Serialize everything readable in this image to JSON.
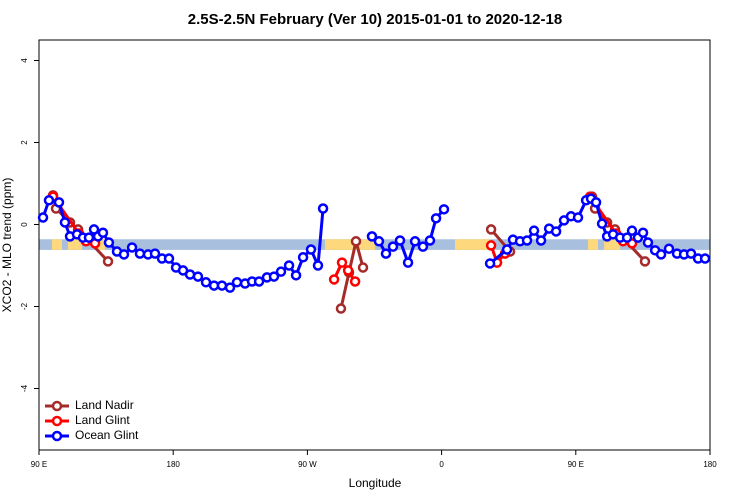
{
  "chart_data": {
    "type": "line",
    "title": "2.5S-2.5N February (Ver 10)   2015-01-01 to 2020-12-18",
    "x_label": "Longitude",
    "y_label": "XCO2 - MLO trend (ppm)",
    "xlim": [
      90,
      540
    ],
    "ylim": [
      -5.5,
      4.5
    ],
    "xticks": [
      {
        "value": 90,
        "label": "90 E"
      },
      {
        "value": 180,
        "label": "180"
      },
      {
        "value": 270,
        "label": "90 W"
      },
      {
        "value": 360,
        "label": "0"
      },
      {
        "value": 450,
        "label": "90 E"
      },
      {
        "value": 540,
        "label": "180"
      }
    ],
    "yticks": [
      -4,
      -2,
      0,
      2,
      4
    ],
    "legend": "bottom-left",
    "band": {
      "y": [
        -0.62,
        -0.36
      ],
      "color": "#a9bfde",
      "segments": [
        {
          "x": [
            98.7,
            105.4
          ],
          "color": "#fdd87c"
        },
        {
          "x": [
            109.4,
            118.8
          ],
          "color": "#fdd87c"
        },
        {
          "x": [
            127.6,
            134.3
          ],
          "color": "#fdd87c"
        },
        {
          "x": [
            281.8,
            315.4
          ],
          "color": "#fdd87c"
        },
        {
          "x": [
            369,
            392.5
          ],
          "color": "#fdd87c"
        },
        {
          "x": [
            458.2,
            464.9
          ],
          "color": "#fdd87c"
        },
        {
          "x": [
            469,
            479.7
          ],
          "color": "#fdd87c"
        }
      ]
    },
    "series": [
      {
        "name": "Land Nadir",
        "color": "#a52a2a",
        "x": [
          99.4,
          101.4,
          110.8,
          116.2,
          136.3,
          null,
          292.5,
          297.9,
          302.6,
          307.3,
          null,
          393.2,
          405.9,
          null,
          460.9,
          462.9,
          471.0,
          476.3,
          496.4
        ],
        "values": [
          0.71,
          0.39,
          0.05,
          -0.12,
          -0.9,
          null,
          -2.05,
          -1.17,
          -0.41,
          -1.05,
          null,
          -0.12,
          -0.66,
          null,
          0.68,
          0.39,
          0.05,
          -0.12,
          -0.9
        ]
      },
      {
        "name": "Land Glint",
        "color": "#ff0000",
        "x": [
          99.4,
          116.8,
          121.5,
          127.6,
          null,
          287.9,
          293.2,
          297.3,
          302.0,
          null,
          393.2,
          397.2,
          402.5,
          null,
          459.6,
          477.0,
          481.7,
          487.7
        ],
        "values": [
          0.68,
          -0.22,
          -0.41,
          -0.46,
          null,
          -1.34,
          -0.93,
          -1.12,
          -1.39,
          null,
          -0.51,
          -0.93,
          -0.71,
          null,
          0.68,
          -0.22,
          -0.41,
          -0.46
        ]
      },
      {
        "name": "Ocean Glint",
        "color": "#0000ff",
        "x": [
          92.7,
          96.7,
          103.4,
          107.4,
          110.8,
          115.5,
          119.5,
          123.5,
          126.9,
          129.6,
          132.9,
          136.9,
          142.3,
          147.0,
          152.4,
          157.7,
          163.1,
          167.8,
          172.5,
          177.2,
          181.9,
          186.6,
          191.3,
          196.6,
          202.0,
          207.4,
          212.7,
          218.1,
          222.8,
          228.2,
          232.9,
          237.6,
          242.9,
          247.6,
          252.3,
          257.7,
          262.4,
          267.1,
          272.4,
          277.1,
          280.5,
          null,
          313.3,
          318.0,
          322.7,
          327.4,
          332.1,
          337.5,
          342.2,
          347.5,
          352.2,
          356.3,
          361.6,
          null,
          392.5,
          403.9,
          407.9,
          412.6,
          417.3,
          422.0,
          426.7,
          432.1,
          436.8,
          442.1,
          446.8,
          451.5,
          456.9,
          460.2,
          463.6,
          467.6,
          471.0,
          475.0,
          479.7,
          484.4,
          487.7,
          491.7,
          495.1,
          498.4,
          503.2,
          507.2,
          512.5,
          517.9,
          522.6,
          527.3,
          532.0,
          536.7
        ],
        "values": [
          0.17,
          0.59,
          0.54,
          0.05,
          -0.29,
          -0.24,
          -0.32,
          -0.32,
          -0.12,
          -0.29,
          -0.2,
          -0.44,
          -0.66,
          -0.73,
          -0.56,
          -0.71,
          -0.73,
          -0.71,
          -0.83,
          -0.83,
          -1.05,
          -1.12,
          -1.22,
          -1.27,
          -1.41,
          -1.49,
          -1.49,
          -1.54,
          -1.41,
          -1.44,
          -1.39,
          -1.39,
          -1.29,
          -1.27,
          -1.15,
          -1.0,
          -1.24,
          -0.8,
          -0.61,
          -1.0,
          0.39,
          null,
          -0.29,
          -0.41,
          -0.71,
          -0.54,
          -0.39,
          -0.93,
          -0.41,
          -0.54,
          -0.39,
          0.15,
          0.37,
          null,
          -0.95,
          -0.61,
          -0.37,
          -0.41,
          -0.39,
          -0.15,
          -0.39,
          -0.1,
          -0.17,
          0.1,
          0.2,
          0.17,
          0.59,
          0.63,
          0.54,
          0.02,
          -0.29,
          -0.24,
          -0.32,
          -0.32,
          -0.15,
          -0.32,
          -0.2,
          -0.44,
          -0.63,
          -0.73,
          -0.59,
          -0.71,
          -0.73,
          -0.71,
          -0.83,
          -0.83
        ]
      }
    ]
  }
}
